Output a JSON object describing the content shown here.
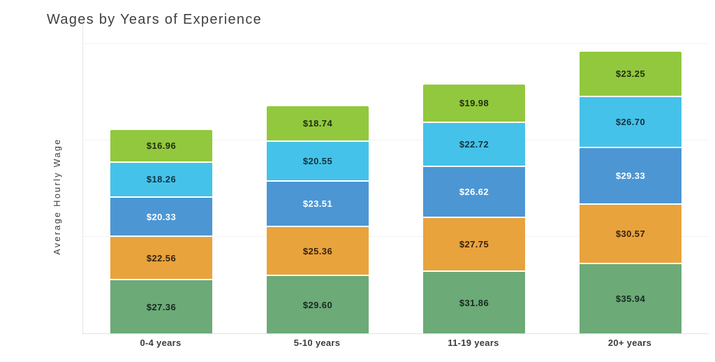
{
  "chart_data": {
    "type": "bar",
    "stacked": true,
    "title": "Wages by Years of Experience",
    "ylabel": "Average Hourly Wage",
    "xlabel": "",
    "categories": [
      "0-4 years",
      "5-10 years",
      "11-19 years",
      "20+ years"
    ],
    "series": [
      {
        "name": "green-bottom-segment",
        "color": "#6CAA78",
        "label_color": "#172a1e",
        "values": [
          27.36,
          29.6,
          31.86,
          35.94
        ]
      },
      {
        "name": "orange-segment",
        "color": "#E9A33C",
        "label_color": "#35230e",
        "values": [
          22.56,
          25.36,
          27.75,
          30.57
        ]
      },
      {
        "name": "blue-segment",
        "color": "#4C96D4",
        "label_color": "#ffffff",
        "values": [
          20.33,
          23.51,
          26.62,
          29.33
        ]
      },
      {
        "name": "cyan-segment",
        "color": "#45C2E9",
        "label_color": "#113340",
        "values": [
          18.26,
          20.55,
          22.72,
          26.7
        ]
      },
      {
        "name": "lime-top-segment",
        "color": "#92C83E",
        "label_color": "#1f2e10",
        "values": [
          16.96,
          18.74,
          19.98,
          23.25
        ]
      }
    ],
    "value_prefix": "$",
    "ylim": [
      0,
      160
    ],
    "gridline_values": [
      0,
      50,
      100,
      150
    ],
    "legend_position": "none",
    "grid_on": true,
    "grid_color": "#f1f1f1",
    "axis_color": "#e3e3e3",
    "background_color": "#ffffff"
  }
}
